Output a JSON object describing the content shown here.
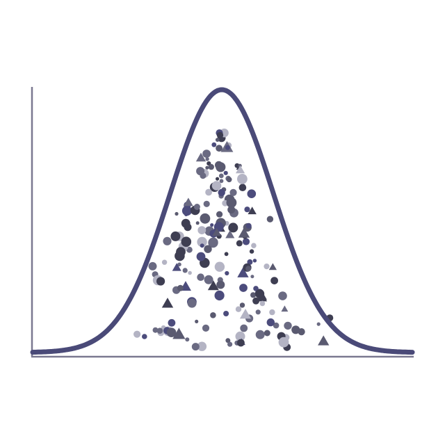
{
  "colors": {
    "background": "#ffffff",
    "curve": "#4a4a78",
    "axis": "#7a7890",
    "dots": [
      "#3e3e52",
      "#4c4c7c",
      "#6a6a82",
      "#b4b4c4",
      "#5a5a70"
    ]
  },
  "illustration": {
    "curve_type": "normal-distribution",
    "marker_shapes": [
      "circle",
      "triangle"
    ]
  }
}
